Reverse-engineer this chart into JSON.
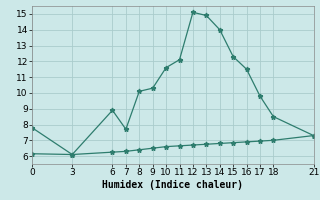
{
  "xlabel": "Humidex (Indice chaleur)",
  "background_color": "#cce8e8",
  "grid_color": "#aacccc",
  "line_color": "#2e7d6e",
  "upper_x": [
    0,
    3,
    6,
    7,
    8,
    9,
    10,
    11,
    12,
    13,
    14,
    15,
    16,
    17,
    18,
    21
  ],
  "upper_y": [
    7.8,
    6.1,
    8.9,
    7.7,
    10.1,
    10.3,
    11.6,
    12.1,
    15.1,
    14.9,
    14.0,
    12.3,
    11.5,
    9.8,
    8.5,
    7.3
  ],
  "lower_x": [
    0,
    3,
    6,
    7,
    8,
    9,
    10,
    11,
    12,
    13,
    14,
    15,
    16,
    17,
    18,
    21
  ],
  "lower_y": [
    6.15,
    6.1,
    6.25,
    6.3,
    6.4,
    6.5,
    6.6,
    6.65,
    6.7,
    6.75,
    6.8,
    6.85,
    6.9,
    6.95,
    7.0,
    7.3
  ],
  "xlim": [
    0,
    21
  ],
  "ylim": [
    5.5,
    15.5
  ],
  "xticks": [
    0,
    3,
    6,
    7,
    8,
    9,
    10,
    11,
    12,
    13,
    14,
    15,
    16,
    17,
    18,
    21
  ],
  "yticks": [
    6,
    7,
    8,
    9,
    10,
    11,
    12,
    13,
    14,
    15
  ],
  "xlabel_fontsize": 7,
  "tick_fontsize": 6.5,
  "marker": "*",
  "marker_size": 3.5,
  "line_width": 0.9
}
